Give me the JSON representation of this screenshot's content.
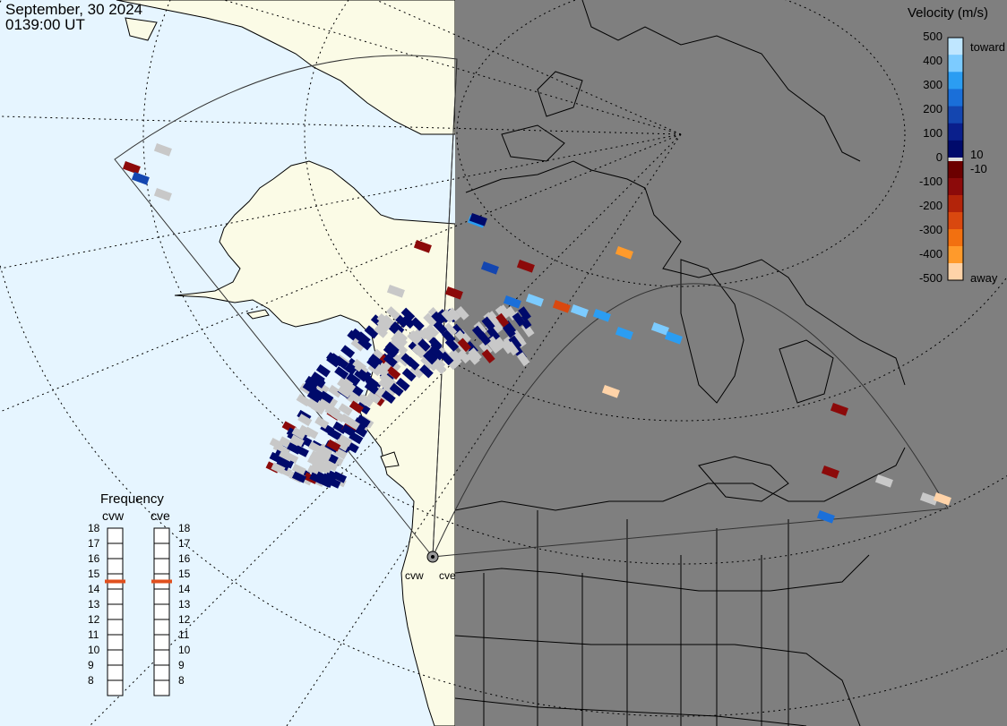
{
  "header": {
    "date": "September, 30 2024",
    "time": "0139:00 UT"
  },
  "velocity_legend": {
    "title": "Velocity (m/s)",
    "ticks": [
      "500",
      "400",
      "300",
      "200",
      "100",
      "0",
      "-100",
      "-200",
      "-300",
      "-400",
      "-500"
    ],
    "inner_ticks": [
      "10",
      "-10"
    ],
    "toward_label": "toward",
    "away_label": "away",
    "colors_toward": [
      "#bfe6ff",
      "#7ccbff",
      "#2b9df2",
      "#1a6fd9",
      "#1446b0",
      "#0a1f8c",
      "#000a6b"
    ],
    "colors_away": [
      "#6b0000",
      "#8c0a0a",
      "#b3240a",
      "#d9480f",
      "#f27010",
      "#ff9a2b",
      "#ffd3a8"
    ]
  },
  "frequency_legend": {
    "title": "Frequency",
    "radars": [
      {
        "name": "cvw",
        "frequency_mhz": 15
      },
      {
        "name": "cve",
        "frequency_mhz": 15
      }
    ],
    "levels": [
      "18",
      "17",
      "16",
      "15",
      "14",
      "13",
      "12",
      "11",
      "10",
      "9",
      "8"
    ],
    "marker_color": "#e0501e"
  },
  "map": {
    "radar_site_labels": [
      "cvw",
      "cve"
    ],
    "ocean_color": "#e6f5ff",
    "land_day_color": "#fbfbe6",
    "night_color": "#7f7f7f",
    "ground_scatter_color": "#c8c8c8"
  }
}
